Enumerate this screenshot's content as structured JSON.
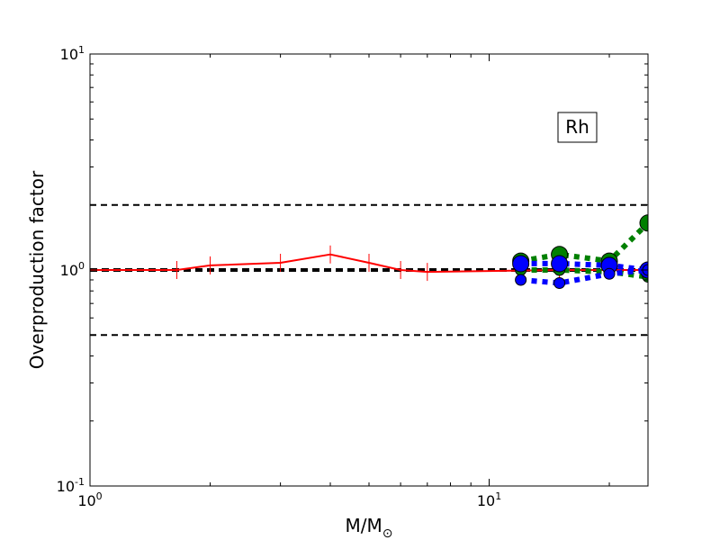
{
  "chart_data": {
    "type": "line",
    "title": "",
    "xlabel_main": "M/M",
    "xlabel_sub": "⊙",
    "ylabel": "Overproduction factor",
    "xscale": "log",
    "yscale": "log",
    "xlim": [
      1,
      25
    ],
    "ylim": [
      0.1,
      10
    ],
    "x_ticks": [
      {
        "value": 1,
        "base": "10",
        "exp": "0"
      },
      {
        "value": 10,
        "base": "10",
        "exp": "1"
      }
    ],
    "y_ticks": [
      {
        "value": 0.1,
        "base": "10",
        "exp": "-1"
      },
      {
        "value": 1,
        "base": "10",
        "exp": "0"
      },
      {
        "value": 10,
        "base": "10",
        "exp": "1"
      }
    ],
    "annotation": "Rh",
    "reference_lines": [
      {
        "y": 2.0,
        "style": "dashed",
        "color": "#000000",
        "width": 2
      },
      {
        "y": 1.0,
        "style": "dashed",
        "color": "#000000",
        "width": 4
      },
      {
        "y": 0.5,
        "style": "dashed",
        "color": "#000000",
        "width": 2
      }
    ],
    "series": [
      {
        "color": "#ff0000",
        "style": "solid",
        "width": 2,
        "marker": "vline",
        "x": [
          1.0,
          1.65,
          2.0,
          3.0,
          4.0,
          5.0,
          6.0,
          7.0,
          15.0,
          20.0,
          25.0
        ],
        "y": [
          1.0,
          1.0,
          1.05,
          1.08,
          1.18,
          1.08,
          1.0,
          0.98,
          1.0,
          1.0,
          1.0
        ]
      },
      {
        "color": "#008000",
        "style": "dotted",
        "width": 6,
        "marker": "circle",
        "marker_size": 9,
        "x": [
          12,
          15,
          20,
          25
        ],
        "y": [
          1.1,
          1.18,
          1.1,
          1.65
        ]
      },
      {
        "color": "#008000",
        "style": "dotted",
        "width": 6,
        "marker": "circle",
        "marker_size": 6,
        "x": [
          12,
          15,
          20,
          25
        ],
        "y": [
          1.0,
          1.0,
          0.98,
          0.93
        ]
      },
      {
        "color": "#0000ff",
        "style": "dotted",
        "width": 6,
        "marker": "circle",
        "marker_size": 9,
        "x": [
          12,
          15,
          20,
          25
        ],
        "y": [
          1.07,
          1.07,
          1.05,
          1.0
        ]
      },
      {
        "color": "#0000ff",
        "style": "dotted",
        "width": 6,
        "marker": "circle",
        "marker_size": 6,
        "x": [
          12,
          15,
          20,
          25
        ],
        "y": [
          0.9,
          0.87,
          0.96,
          1.0
        ]
      }
    ]
  }
}
